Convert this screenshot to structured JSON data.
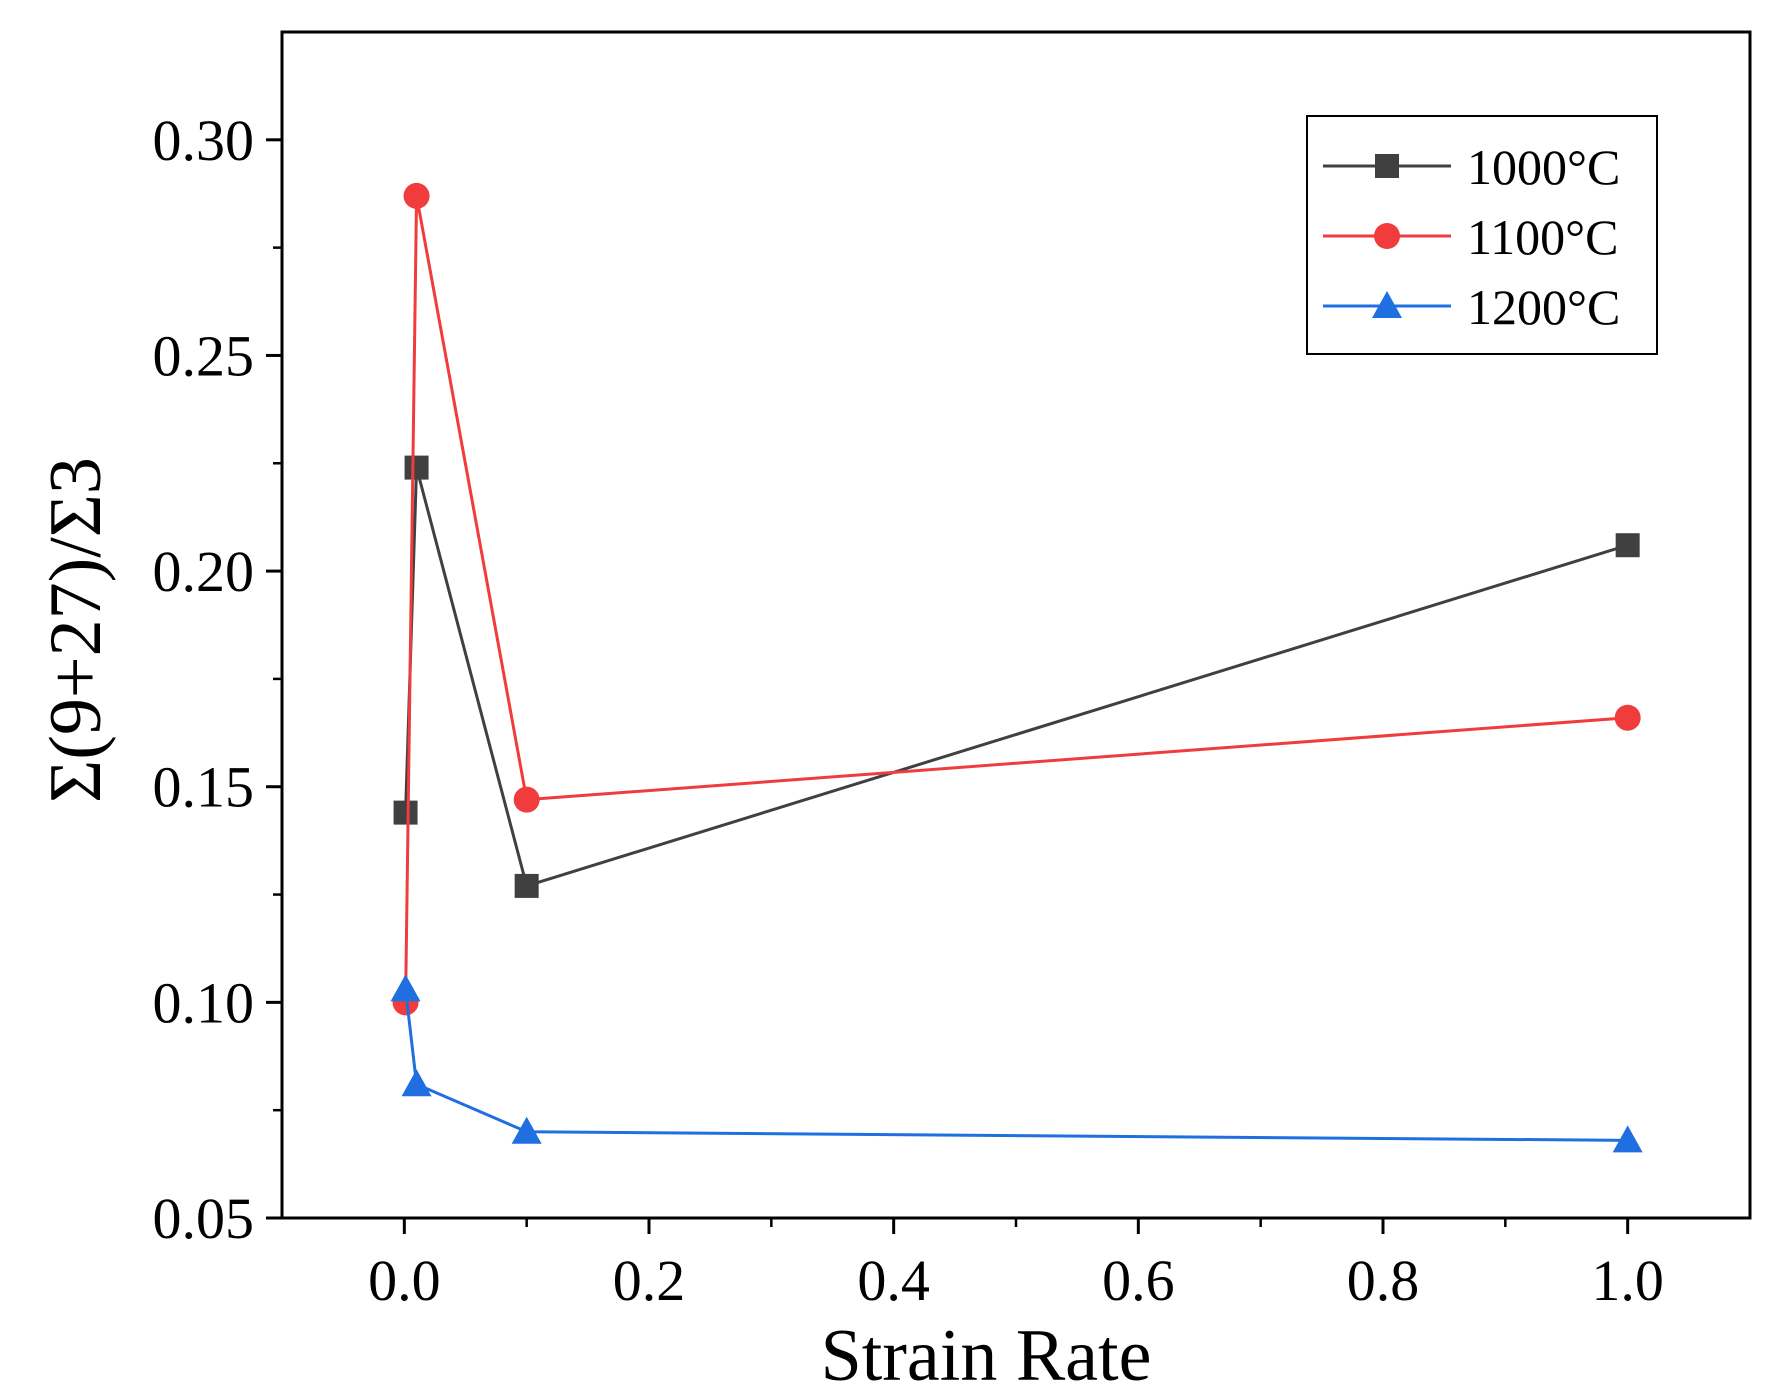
{
  "chart_data": {
    "type": "line",
    "title": "",
    "xlabel": "Strain Rate",
    "ylabel": "Σ(9+27)/Σ3",
    "xlim": [
      -0.1,
      1.1
    ],
    "ylim": [
      0.05,
      0.325
    ],
    "xticks": [
      0.0,
      0.2,
      0.4,
      0.6,
      0.8,
      1.0
    ],
    "xtick_labels": [
      "0.0",
      "0.2",
      "0.4",
      "0.6",
      "0.8",
      "1.0"
    ],
    "yticks": [
      0.05,
      0.1,
      0.15,
      0.2,
      0.25,
      0.3
    ],
    "ytick_labels": [
      "0.05",
      "0.10",
      "0.15",
      "0.20",
      "0.25",
      "0.30"
    ],
    "grid": false,
    "legend_position": "top-right",
    "x": [
      0.001,
      0.01,
      0.1,
      1.0
    ],
    "series": [
      {
        "name": "1000°C",
        "color": "#404040",
        "marker": "square",
        "values": [
          0.144,
          0.224,
          0.127,
          0.206
        ]
      },
      {
        "name": "1100°C",
        "color": "#f03c3c",
        "marker": "circle",
        "values": [
          0.1,
          0.287,
          0.147,
          0.166
        ]
      },
      {
        "name": "1200°C",
        "color": "#1f6fe0",
        "marker": "triangle",
        "values": [
          0.103,
          0.081,
          0.07,
          0.068
        ]
      }
    ]
  }
}
